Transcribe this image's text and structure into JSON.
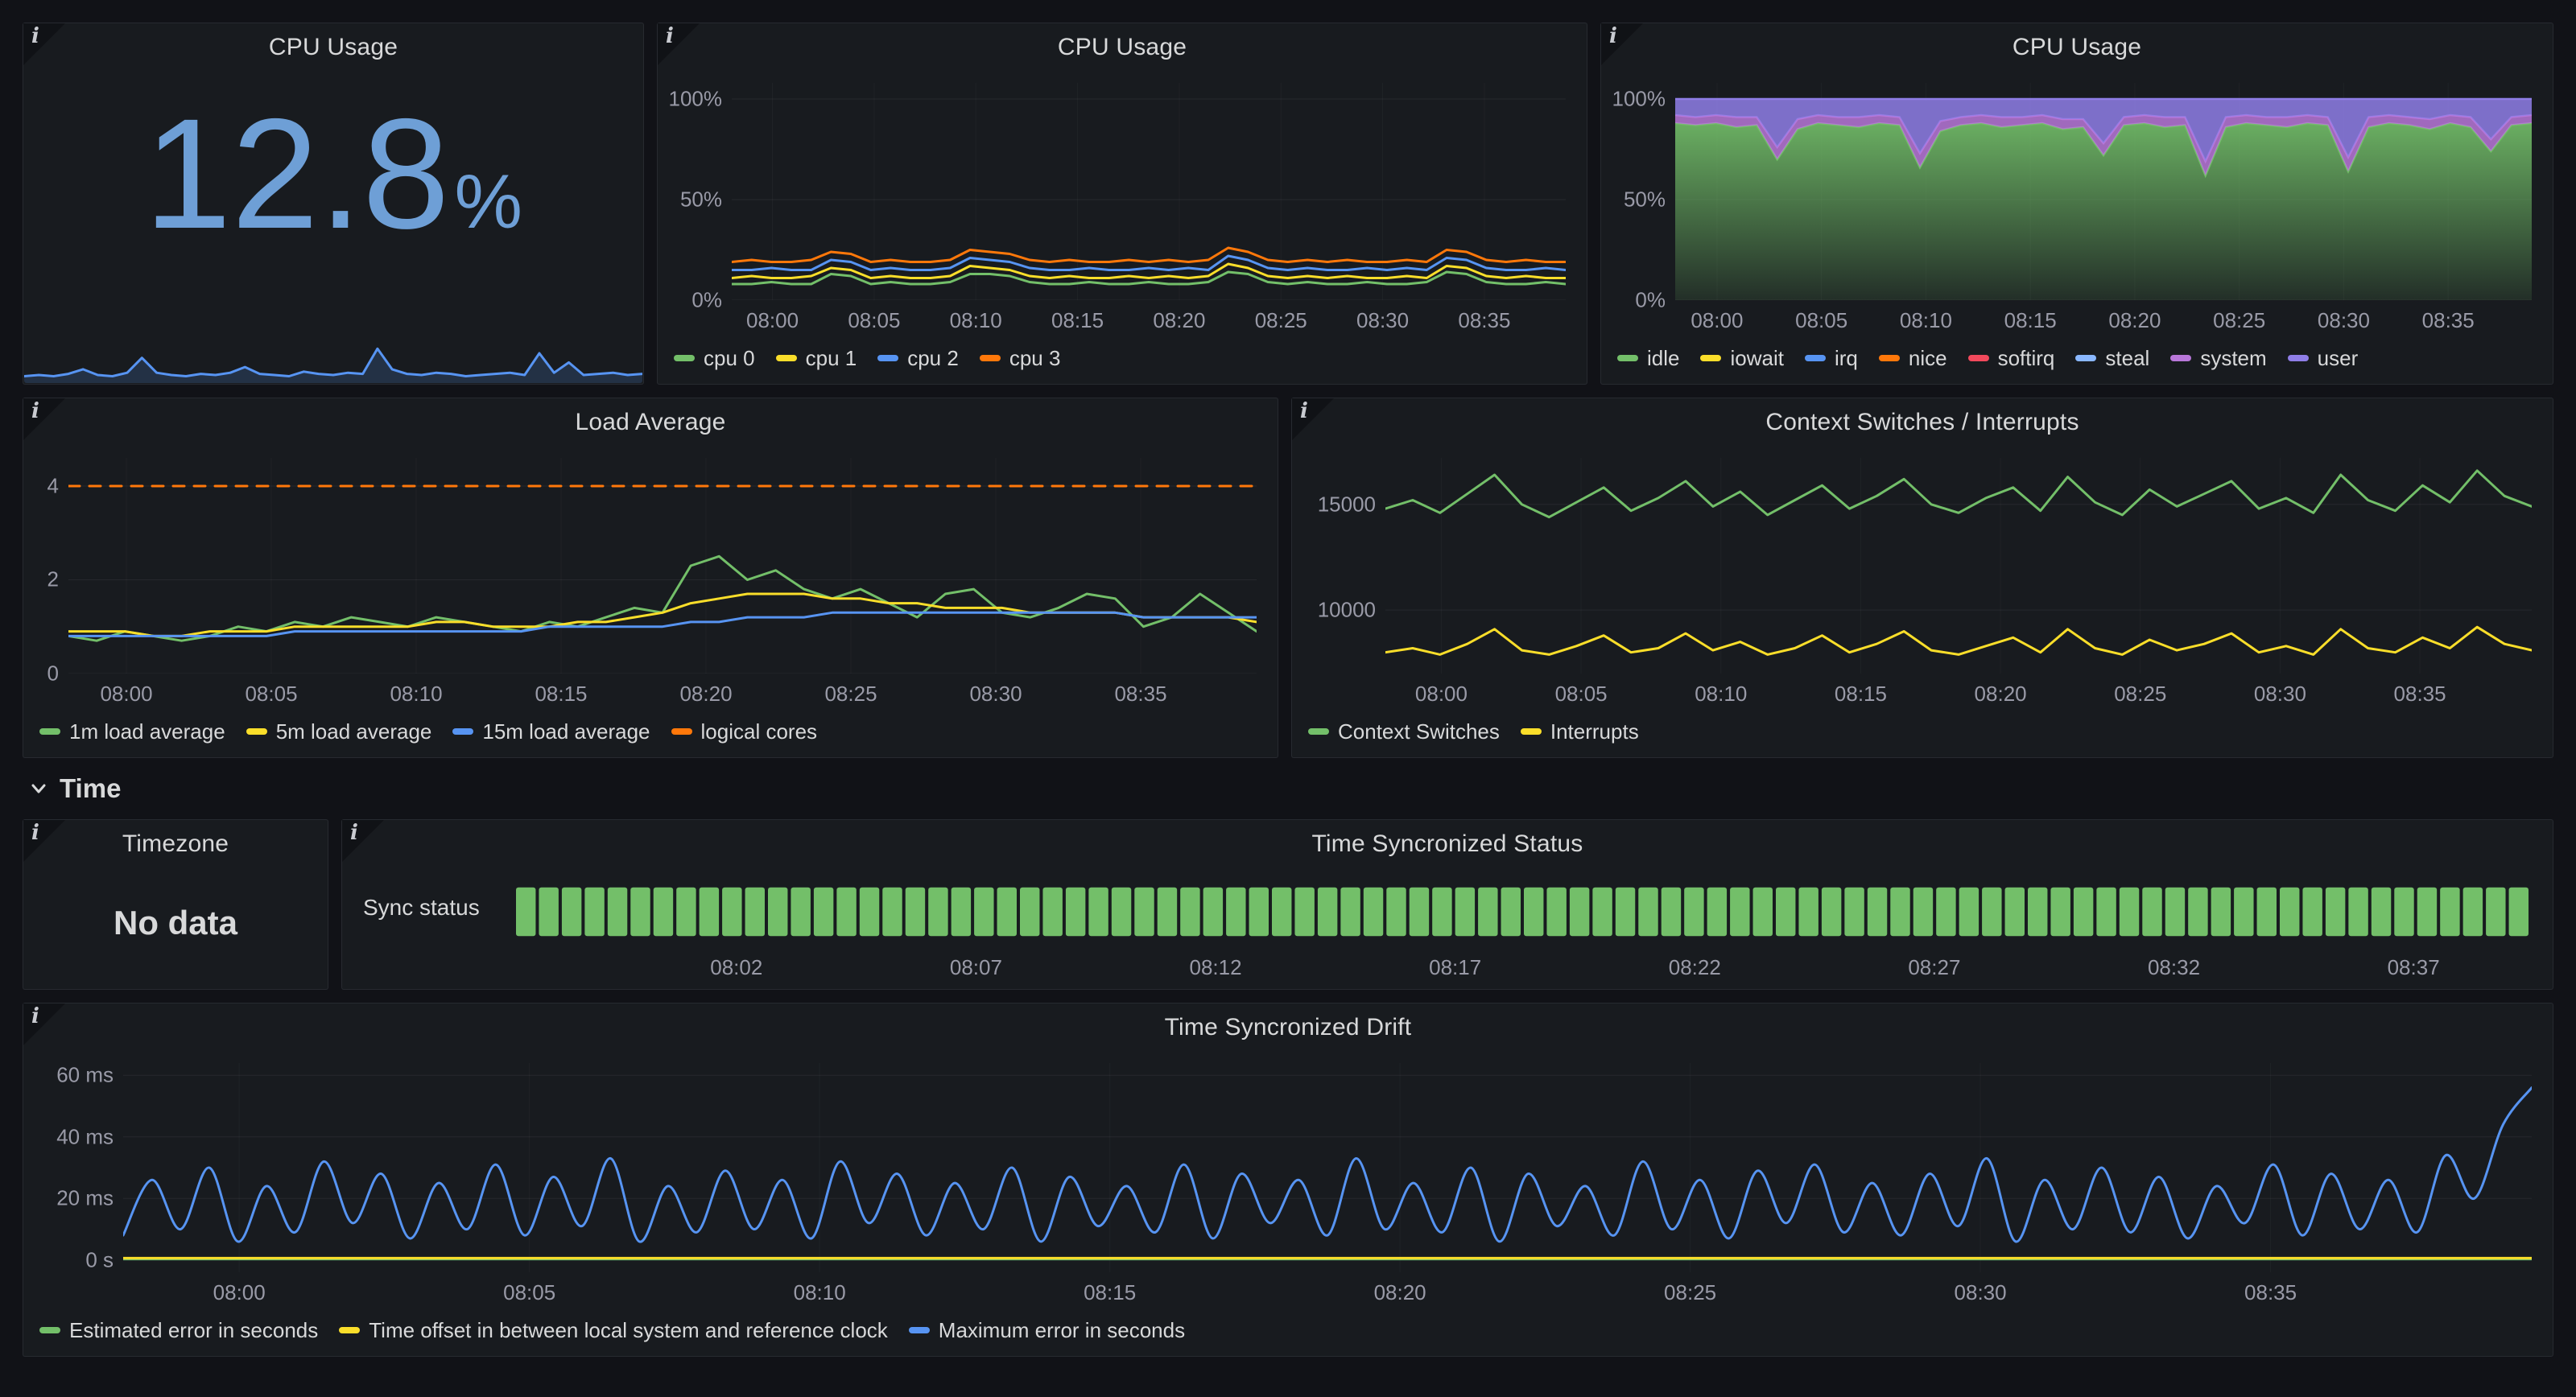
{
  "icons": {
    "info": "i",
    "chevron": "chevron-down"
  },
  "colors": {
    "page_bg": "#111217",
    "panel_bg": "#181B1F",
    "stat_value": "#6E9FD6",
    "green": "#73BF69",
    "yellow": "#FADE2A",
    "blue": "#5794F2",
    "orange": "#FF780A",
    "red": "#F2495C",
    "light_blue": "#8AB8FF",
    "magenta": "#B877D9",
    "purple": "#8F7EE7",
    "status_cell": "#73BF69"
  },
  "section": {
    "time_label": "Time"
  },
  "panels": {
    "cpu_stat": {
      "title": "CPU Usage",
      "value": "12.8",
      "unit": "%"
    },
    "cpu_lines": {
      "title": "CPU Usage"
    },
    "cpu_stack": {
      "title": "CPU Usage"
    },
    "load": {
      "title": "Load Average"
    },
    "ctx": {
      "title": "Context Switches / Interrupts"
    },
    "timezone": {
      "title": "Timezone",
      "no_data": "No data"
    },
    "sync_status": {
      "title": "Time Syncronized Status",
      "row_label": "Sync status"
    },
    "drift": {
      "title": "Time Syncronized Drift"
    }
  },
  "chart_data": {
    "cpu_stat_spark": {
      "type": "sparkline",
      "ylim": [
        0,
        45
      ],
      "series": [
        {
          "name": "CPU Usage",
          "color": "#5794F2",
          "width": 3,
          "fill_to_bottom": true,
          "fill": "#5794F2",
          "fill_opacity": 0.18,
          "values": [
            6,
            7,
            6,
            8,
            12,
            7,
            6,
            9,
            22,
            9,
            7,
            6,
            8,
            7,
            9,
            14,
            8,
            7,
            6,
            10,
            8,
            7,
            9,
            8,
            30,
            12,
            8,
            7,
            9,
            8,
            6,
            7,
            8,
            9,
            7,
            26,
            9,
            18,
            7,
            8,
            9,
            7,
            8
          ]
        }
      ]
    },
    "cpu_lines": {
      "type": "line",
      "x_range": [
        58,
        99
      ],
      "x_tick_pos": [
        60,
        65,
        70,
        75,
        80,
        85,
        90,
        95
      ],
      "x_tick_labels": [
        "08:00",
        "08:05",
        "08:10",
        "08:15",
        "08:20",
        "08:25",
        "08:30",
        "08:35"
      ],
      "ylim": [
        0,
        108
      ],
      "y_tick_vals": [
        0,
        50,
        100
      ],
      "y_tick_labels": [
        "0%",
        "50%",
        "100%"
      ],
      "series": [
        {
          "name": "cpu 0",
          "color": "#73BF69",
          "values": [
            8,
            8,
            9,
            8,
            8,
            13,
            12,
            8,
            9,
            8,
            8,
            9,
            13,
            13,
            12,
            9,
            8,
            8,
            9,
            8,
            8,
            9,
            8,
            8,
            9,
            14,
            13,
            9,
            8,
            9,
            8,
            8,
            9,
            8,
            8,
            9,
            14,
            13,
            9,
            8,
            8,
            9,
            8
          ]
        },
        {
          "name": "cpu 1",
          "color": "#FADE2A",
          "values": [
            11,
            12,
            11,
            11,
            12,
            16,
            15,
            11,
            12,
            11,
            11,
            12,
            17,
            16,
            15,
            12,
            11,
            12,
            11,
            11,
            12,
            11,
            12,
            11,
            12,
            18,
            16,
            12,
            11,
            12,
            11,
            12,
            11,
            11,
            12,
            11,
            17,
            16,
            12,
            11,
            12,
            11,
            11
          ]
        },
        {
          "name": "cpu 2",
          "color": "#5794F2",
          "values": [
            15,
            15,
            16,
            15,
            15,
            20,
            19,
            15,
            16,
            15,
            15,
            16,
            21,
            20,
            19,
            16,
            15,
            15,
            16,
            15,
            15,
            16,
            15,
            16,
            15,
            22,
            20,
            16,
            15,
            16,
            15,
            15,
            16,
            15,
            16,
            15,
            21,
            20,
            16,
            15,
            15,
            16,
            15
          ]
        },
        {
          "name": "cpu 3",
          "color": "#FF780A",
          "values": [
            19,
            20,
            19,
            19,
            20,
            24,
            23,
            19,
            20,
            19,
            19,
            20,
            25,
            24,
            23,
            20,
            19,
            20,
            19,
            19,
            20,
            19,
            20,
            19,
            20,
            26,
            24,
            20,
            19,
            20,
            19,
            20,
            19,
            19,
            20,
            19,
            25,
            24,
            20,
            19,
            20,
            19,
            19
          ]
        }
      ]
    },
    "cpu_stack": {
      "type": "stacked-area",
      "x_range": [
        58,
        99
      ],
      "x_tick_pos": [
        60,
        65,
        70,
        75,
        80,
        85,
        90,
        95
      ],
      "x_tick_labels": [
        "08:00",
        "08:05",
        "08:10",
        "08:15",
        "08:20",
        "08:25",
        "08:30",
        "08:35"
      ],
      "ylim": [
        0,
        108
      ],
      "y_tick_vals": [
        0,
        50,
        100
      ],
      "y_tick_labels": [
        "0%",
        "50%",
        "100%"
      ],
      "series": [
        {
          "name": "idle",
          "color": "#73BF69",
          "gradient": true,
          "values": [
            88,
            87,
            88,
            86,
            87,
            70,
            85,
            88,
            87,
            86,
            88,
            87,
            66,
            84,
            87,
            88,
            86,
            87,
            88,
            85,
            86,
            72,
            87,
            88,
            86,
            87,
            62,
            86,
            88,
            87,
            86,
            88,
            87,
            64,
            86,
            88,
            87,
            85,
            88,
            86,
            74,
            87,
            88
          ]
        },
        {
          "name": "system",
          "color": "#B877D9",
          "fill_opacity": 0.85,
          "values": [
            4,
            4,
            4,
            5,
            4,
            6,
            5,
            4,
            4,
            5,
            4,
            4,
            7,
            5,
            4,
            4,
            5,
            4,
            4,
            5,
            4,
            6,
            4,
            4,
            5,
            4,
            7,
            5,
            4,
            4,
            5,
            4,
            4,
            7,
            5,
            4,
            4,
            5,
            4,
            5,
            6,
            4,
            4
          ]
        },
        {
          "name": "user",
          "color": "#8F7EE7",
          "fill_opacity": 0.85,
          "values": [
            8,
            9,
            8,
            9,
            9,
            24,
            10,
            8,
            9,
            9,
            8,
            9,
            27,
            11,
            9,
            8,
            9,
            9,
            8,
            10,
            10,
            22,
            9,
            8,
            9,
            9,
            31,
            9,
            8,
            9,
            9,
            8,
            9,
            29,
            9,
            8,
            9,
            10,
            8,
            9,
            20,
            9,
            8
          ]
        }
      ],
      "legend": [
        {
          "name": "idle",
          "color": "#73BF69"
        },
        {
          "name": "iowait",
          "color": "#FADE2A"
        },
        {
          "name": "irq",
          "color": "#5794F2"
        },
        {
          "name": "nice",
          "color": "#FF780A"
        },
        {
          "name": "softirq",
          "color": "#F2495C"
        },
        {
          "name": "steal",
          "color": "#8AB8FF"
        },
        {
          "name": "system",
          "color": "#B877D9"
        },
        {
          "name": "user",
          "color": "#8F7EE7"
        }
      ]
    },
    "load": {
      "type": "line",
      "x_range": [
        58,
        99
      ],
      "x_tick_pos": [
        60,
        65,
        70,
        75,
        80,
        85,
        90,
        95
      ],
      "x_tick_labels": [
        "08:00",
        "08:05",
        "08:10",
        "08:15",
        "08:20",
        "08:25",
        "08:30",
        "08:35"
      ],
      "ylim": [
        0,
        4.6
      ],
      "y_tick_vals": [
        0,
        2,
        4
      ],
      "y_tick_labels": [
        "0",
        "2",
        "4"
      ],
      "series": [
        {
          "name": "1m load average",
          "color": "#73BF69",
          "values": [
            0.8,
            0.7,
            0.9,
            0.8,
            0.7,
            0.8,
            1.0,
            0.9,
            1.1,
            1.0,
            1.2,
            1.1,
            1.0,
            1.2,
            1.1,
            1.0,
            0.9,
            1.1,
            1.0,
            1.2,
            1.4,
            1.3,
            2.3,
            2.5,
            2.0,
            2.2,
            1.8,
            1.6,
            1.8,
            1.5,
            1.2,
            1.7,
            1.8,
            1.3,
            1.2,
            1.4,
            1.7,
            1.6,
            1.0,
            1.2,
            1.7,
            1.3,
            0.9
          ]
        },
        {
          "name": "5m load average",
          "color": "#FADE2A",
          "values": [
            0.9,
            0.9,
            0.9,
            0.8,
            0.8,
            0.9,
            0.9,
            0.9,
            1.0,
            1.0,
            1.0,
            1.0,
            1.0,
            1.1,
            1.1,
            1.0,
            1.0,
            1.0,
            1.1,
            1.1,
            1.2,
            1.3,
            1.5,
            1.6,
            1.7,
            1.7,
            1.7,
            1.6,
            1.6,
            1.5,
            1.5,
            1.4,
            1.4,
            1.4,
            1.3,
            1.3,
            1.3,
            1.3,
            1.2,
            1.2,
            1.2,
            1.2,
            1.1
          ]
        },
        {
          "name": "15m load average",
          "color": "#5794F2",
          "values": [
            0.8,
            0.8,
            0.8,
            0.8,
            0.8,
            0.8,
            0.8,
            0.8,
            0.9,
            0.9,
            0.9,
            0.9,
            0.9,
            0.9,
            0.9,
            0.9,
            0.9,
            1.0,
            1.0,
            1.0,
            1.0,
            1.0,
            1.1,
            1.1,
            1.2,
            1.2,
            1.2,
            1.3,
            1.3,
            1.3,
            1.3,
            1.3,
            1.3,
            1.3,
            1.3,
            1.3,
            1.3,
            1.3,
            1.2,
            1.2,
            1.2,
            1.2,
            1.2
          ]
        },
        {
          "name": "logical cores",
          "color": "#FF780A",
          "dash": "14 12",
          "width": 3,
          "values": [
            4,
            4
          ]
        }
      ]
    },
    "ctx": {
      "type": "line",
      "x_range": [
        58,
        99
      ],
      "x_tick_pos": [
        60,
        65,
        70,
        75,
        80,
        85,
        90,
        95
      ],
      "x_tick_labels": [
        "08:00",
        "08:05",
        "08:10",
        "08:15",
        "08:20",
        "08:25",
        "08:30",
        "08:35"
      ],
      "ylim": [
        7000,
        17200
      ],
      "y_tick_vals": [
        10000,
        15000
      ],
      "y_tick_labels": [
        "10000",
        "15000"
      ],
      "series": [
        {
          "name": "Context Switches",
          "color": "#73BF69",
          "values": [
            14800,
            15200,
            14600,
            15500,
            16400,
            15000,
            14400,
            15100,
            15800,
            14700,
            15300,
            16100,
            14900,
            15600,
            14500,
            15200,
            15900,
            14800,
            15400,
            16200,
            15000,
            14600,
            15300,
            15800,
            14700,
            16300,
            15100,
            14500,
            15700,
            14900,
            15500,
            16100,
            14800,
            15300,
            14600,
            16400,
            15200,
            14700,
            15900,
            15100,
            16600,
            15400,
            14900
          ]
        },
        {
          "name": "Interrupts",
          "color": "#FADE2A",
          "values": [
            8000,
            8200,
            7900,
            8400,
            9100,
            8100,
            7900,
            8300,
            8800,
            8000,
            8200,
            8900,
            8100,
            8500,
            7900,
            8200,
            8800,
            8000,
            8400,
            9000,
            8100,
            7900,
            8300,
            8700,
            8000,
            9100,
            8200,
            7900,
            8600,
            8100,
            8400,
            8900,
            8000,
            8300,
            7900,
            9100,
            8200,
            8000,
            8700,
            8200,
            9200,
            8400,
            8100
          ]
        }
      ]
    },
    "sync_status": {
      "type": "status",
      "x_range": [
        57.4,
        99.4
      ],
      "x_tick_pos": [
        62,
        67,
        72,
        77,
        82,
        87,
        92,
        97
      ],
      "x_tick_labels": [
        "08:02",
        "08:07",
        "08:12",
        "08:17",
        "08:22",
        "08:27",
        "08:32",
        "08:37"
      ],
      "cell_count": 88,
      "cell_color": "#73BF69",
      "state": "in sync"
    },
    "drift": {
      "type": "line",
      "x_range": [
        58,
        99.5
      ],
      "x_tick_pos": [
        60,
        65,
        70,
        75,
        80,
        85,
        90,
        95
      ],
      "x_tick_labels": [
        "08:00",
        "08:05",
        "08:10",
        "08:15",
        "08:20",
        "08:25",
        "08:30",
        "08:35"
      ],
      "ylim": [
        -4,
        64
      ],
      "y_tick_vals": [
        0,
        20,
        40,
        60
      ],
      "y_tick_labels": [
        "0 s",
        "20 ms",
        "40 ms",
        "60 ms"
      ],
      "series": [
        {
          "name": "Estimated error in seconds",
          "color": "#73BF69",
          "width": 3,
          "values": [
            0.3,
            0.3
          ]
        },
        {
          "name": "Time offset in between local system and reference clock",
          "color": "#FADE2A",
          "width": 3,
          "values": [
            0.6,
            0.6
          ]
        },
        {
          "name": "Maximum error in seconds",
          "color": "#5794F2",
          "smooth": true,
          "width": 3,
          "values": [
            8,
            26,
            10,
            30,
            6,
            24,
            9,
            32,
            12,
            28,
            7,
            25,
            10,
            31,
            8,
            27,
            11,
            33,
            6,
            24,
            9,
            29,
            10,
            26,
            7,
            32,
            12,
            28,
            8,
            25,
            10,
            30,
            6,
            27,
            11,
            24,
            9,
            31,
            7,
            28,
            12,
            26,
            8,
            33,
            10,
            25,
            9,
            30,
            6,
            28,
            11,
            24,
            8,
            32,
            10,
            26,
            7,
            29,
            12,
            31,
            9,
            25,
            8,
            28,
            11,
            33,
            6,
            26,
            10,
            30,
            9,
            27,
            7,
            24,
            12,
            31,
            8,
            28,
            10,
            26,
            9,
            34,
            20,
            44,
            56
          ]
        }
      ]
    }
  }
}
